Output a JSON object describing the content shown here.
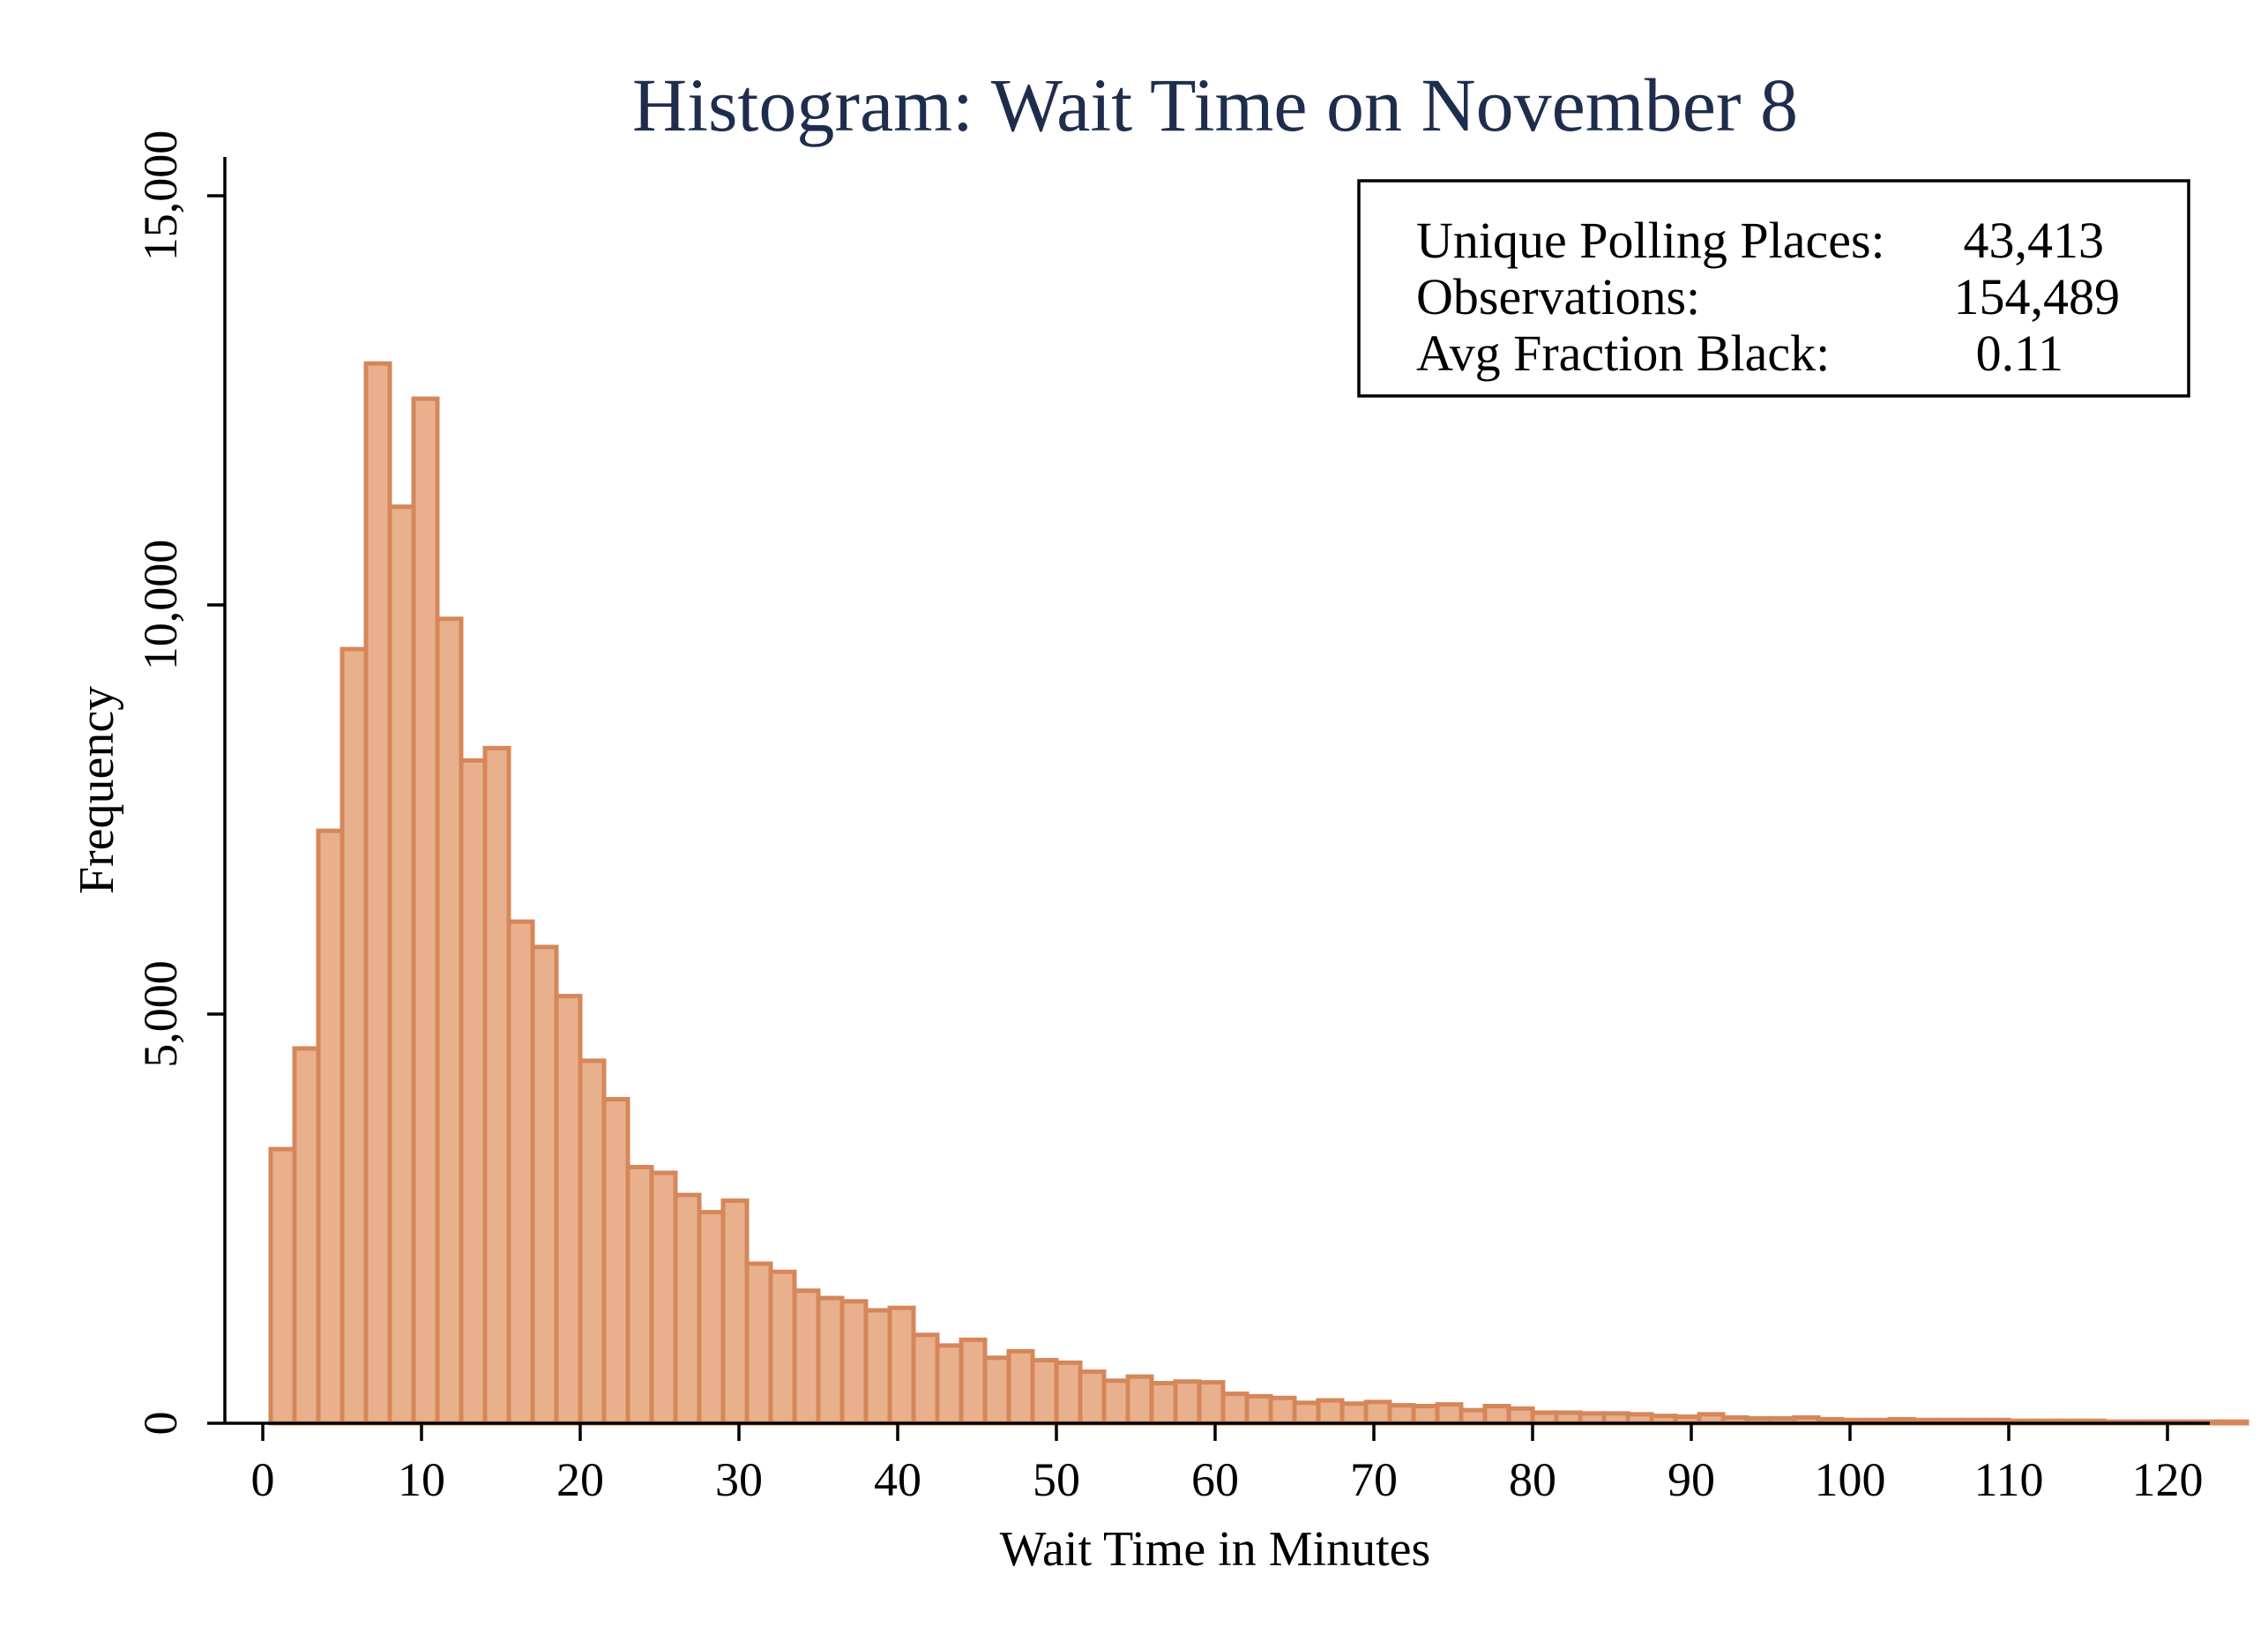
{
  "chart_data": {
    "type": "bar",
    "title": "Histogram: Wait Time on November 8",
    "xlabel": "Wait Time in Minutes",
    "ylabel": "Frequency",
    "xlim": [
      0,
      120
    ],
    "ylim": [
      0,
      15000
    ],
    "x_ticks": [
      {
        "value": 0,
        "label": "0"
      },
      {
        "value": 10,
        "label": "10"
      },
      {
        "value": 20,
        "label": "20"
      },
      {
        "value": 30,
        "label": "30"
      },
      {
        "value": 40,
        "label": "40"
      },
      {
        "value": 50,
        "label": "50"
      },
      {
        "value": 60,
        "label": "60"
      },
      {
        "value": 70,
        "label": "70"
      },
      {
        "value": 80,
        "label": "80"
      },
      {
        "value": 90,
        "label": "90"
      },
      {
        "value": 100,
        "label": "100"
      },
      {
        "value": 110,
        "label": "110"
      },
      {
        "value": 120,
        "label": "120"
      }
    ],
    "y_ticks": [
      {
        "value": 0,
        "label": "0"
      },
      {
        "value": 5000,
        "label": "5,000"
      },
      {
        "value": 10000,
        "label": "10,000"
      },
      {
        "value": 15000,
        "label": "15,000"
      }
    ],
    "bin_start": 0.5,
    "bin_width": 1.5,
    "values": [
      3350,
      4580,
      7240,
      9460,
      12950,
      11200,
      12520,
      9830,
      8100,
      8250,
      6130,
      5820,
      5220,
      4430,
      3960,
      3130,
      3060,
      2790,
      2580,
      2720,
      1950,
      1850,
      1620,
      1530,
      1490,
      1380,
      1410,
      1080,
      950,
      1020,
      800,
      880,
      770,
      740,
      630,
      520,
      570,
      490,
      510,
      500,
      360,
      330,
      310,
      250,
      280,
      240,
      260,
      220,
      210,
      230,
      160,
      210,
      180,
      130,
      130,
      120,
      120,
      110,
      90,
      80,
      110,
      70,
      60,
      60,
      70,
      50,
      40,
      40,
      50,
      40,
      40,
      40,
      40,
      30,
      30,
      30,
      30,
      20,
      20,
      20,
      20,
      20,
      20
    ],
    "grid": false,
    "legend": "none",
    "bar_fill": "#e9b08d",
    "bar_stroke": "#d5875a",
    "title_color": "#1f2d4d"
  },
  "stats": [
    {
      "label": "Unique Polling Places:",
      "value": "43,413"
    },
    {
      "label": "Observations:",
      "value": "154,489"
    },
    {
      "label": "Avg Fraction Black:",
      "value": "0.11"
    }
  ]
}
